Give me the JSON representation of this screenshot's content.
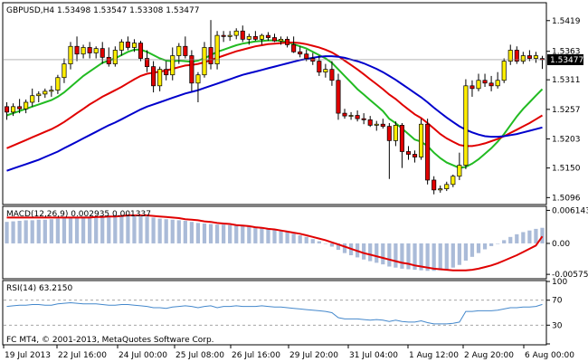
{
  "header": {
    "main_label": "GBPUSD,H4  1.53498 1.53547 1.53308 1.53477",
    "macd_label": "MACD(12,26,9) 0.002935 0.001337",
    "rsi_label": "RSI(14) 63.2150",
    "footer_label": "FC MT4, © 2001-2013, MetaQuotes Software Corp."
  },
  "colors": {
    "bull": "#ffee00",
    "bear": "#e00000",
    "ma_fast": "#22bb22",
    "ma_mid": "#e00000",
    "ma_slow": "#0000cc",
    "macd_hist": "#aabbd8",
    "macd_signal": "#e00000",
    "rsi_line": "#4488cc",
    "price_tag_bg": "#000000"
  },
  "chart_data": [
    {
      "type": "candlestick",
      "title": "GBPUSD,H4",
      "ylim": [
        1.5085,
        1.545
      ],
      "yticks": [
        1.5419,
        1.5363,
        1.5311,
        1.5257,
        1.5203,
        1.515,
        1.5096
      ],
      "current_price": 1.53477,
      "x_labels": [
        "19 Jul 2013",
        "22 Jul 16:00",
        "24 Jul 00:00",
        "25 Jul 08:00",
        "26 Jul 16:00",
        "29 Jul 20:00",
        "31 Jul 04:00",
        "1 Aug 12:00",
        "2 Aug 20:00",
        "6 Aug 00:00"
      ],
      "candles": [
        [
          1.5262,
          1.527,
          1.5238,
          1.5252
        ],
        [
          1.5252,
          1.5268,
          1.5245,
          1.5262
        ],
        [
          1.5262,
          1.5276,
          1.525,
          1.5258
        ],
        [
          1.5258,
          1.5275,
          1.525,
          1.527
        ],
        [
          1.527,
          1.5295,
          1.5262,
          1.5282
        ],
        [
          1.5282,
          1.529,
          1.527,
          1.5285
        ],
        [
          1.5285,
          1.5295,
          1.5278,
          1.529
        ],
        [
          1.529,
          1.53,
          1.528,
          1.5292
        ],
        [
          1.5292,
          1.532,
          1.5285,
          1.5315
        ],
        [
          1.5315,
          1.535,
          1.5305,
          1.534
        ],
        [
          1.534,
          1.538,
          1.533,
          1.5372
        ],
        [
          1.5372,
          1.539,
          1.5345,
          1.5358
        ],
        [
          1.5358,
          1.5375,
          1.535,
          1.537
        ],
        [
          1.537,
          1.538,
          1.535,
          1.536
        ],
        [
          1.536,
          1.5372,
          1.535,
          1.5368
        ],
        [
          1.5368,
          1.538,
          1.534,
          1.5352
        ],
        [
          1.5352,
          1.537,
          1.5335,
          1.534
        ],
        [
          1.534,
          1.5372,
          1.5335,
          1.5365
        ],
        [
          1.5365,
          1.5385,
          1.5355,
          1.538
        ],
        [
          1.538,
          1.539,
          1.5365,
          1.537
        ],
        [
          1.537,
          1.5385,
          1.5362,
          1.5378
        ],
        [
          1.5378,
          1.5382,
          1.5345,
          1.535
        ],
        [
          1.535,
          1.5365,
          1.5325,
          1.5335
        ],
        [
          1.5335,
          1.5345,
          1.5288,
          1.53
        ],
        [
          1.53,
          1.5335,
          1.529,
          1.533
        ],
        [
          1.533,
          1.5345,
          1.531,
          1.532
        ],
        [
          1.532,
          1.537,
          1.531,
          1.5355
        ],
        [
          1.5355,
          1.5378,
          1.534,
          1.5372
        ],
        [
          1.5372,
          1.539,
          1.535,
          1.5355
        ],
        [
          1.5355,
          1.5365,
          1.529,
          1.5305
        ],
        [
          1.5305,
          1.5325,
          1.527,
          1.532
        ],
        [
          1.532,
          1.538,
          1.5315,
          1.537
        ],
        [
          1.537,
          1.542,
          1.533,
          1.534
        ],
        [
          1.534,
          1.54,
          1.533,
          1.5392
        ],
        [
          1.5392,
          1.54,
          1.538,
          1.539
        ],
        [
          1.539,
          1.54,
          1.5382,
          1.5392
        ],
        [
          1.5392,
          1.5405,
          1.5385,
          1.54
        ],
        [
          1.54,
          1.541,
          1.538,
          1.5385
        ],
        [
          1.5385,
          1.5395,
          1.5375,
          1.539
        ],
        [
          1.539,
          1.54,
          1.5382,
          1.5385
        ],
        [
          1.5385,
          1.5395,
          1.5375,
          1.5392
        ],
        [
          1.5392,
          1.5398,
          1.5382,
          1.5388
        ],
        [
          1.5388,
          1.5395,
          1.538,
          1.5382
        ],
        [
          1.5382,
          1.539,
          1.5375,
          1.5385
        ],
        [
          1.5385,
          1.539,
          1.537,
          1.5375
        ],
        [
          1.5375,
          1.539,
          1.536,
          1.5362
        ],
        [
          1.5362,
          1.5372,
          1.5352,
          1.5358
        ],
        [
          1.5358,
          1.5366,
          1.5345,
          1.535
        ],
        [
          1.535,
          1.536,
          1.5338,
          1.5345
        ],
        [
          1.5345,
          1.5355,
          1.5318,
          1.5325
        ],
        [
          1.5325,
          1.534,
          1.5315,
          1.533
        ],
        [
          1.533,
          1.5345,
          1.53,
          1.531
        ],
        [
          1.531,
          1.5322,
          1.5238,
          1.525
        ],
        [
          1.525,
          1.5258,
          1.524,
          1.5245
        ],
        [
          1.5245,
          1.5252,
          1.5238,
          1.5246
        ],
        [
          1.5246,
          1.5255,
          1.5235,
          1.524
        ],
        [
          1.524,
          1.525,
          1.523,
          1.5238
        ],
        [
          1.5238,
          1.5245,
          1.5225,
          1.5228
        ],
        [
          1.5228,
          1.5236,
          1.5218,
          1.523
        ],
        [
          1.523,
          1.524,
          1.5222,
          1.5226
        ],
        [
          1.5226,
          1.5232,
          1.513,
          1.52
        ],
        [
          1.52,
          1.5235,
          1.519,
          1.5228
        ],
        [
          1.5228,
          1.5232,
          1.515,
          1.518
        ],
        [
          1.518,
          1.519,
          1.5165,
          1.5175
        ],
        [
          1.5175,
          1.5182,
          1.516,
          1.517
        ],
        [
          1.517,
          1.524,
          1.5165,
          1.523
        ],
        [
          1.523,
          1.524,
          1.512,
          1.5128
        ],
        [
          1.5128,
          1.5135,
          1.5102,
          1.511
        ],
        [
          1.511,
          1.5118,
          1.5105,
          1.5112
        ],
        [
          1.5112,
          1.5125,
          1.5108,
          1.512
        ],
        [
          1.512,
          1.5138,
          1.5115,
          1.5135
        ],
        [
          1.5135,
          1.5178,
          1.5128,
          1.5155
        ],
        [
          1.5155,
          1.5312,
          1.5148,
          1.53
        ],
        [
          1.53,
          1.531,
          1.528,
          1.5295
        ],
        [
          1.5295,
          1.5322,
          1.529,
          1.531
        ],
        [
          1.531,
          1.5322,
          1.5298,
          1.5305
        ],
        [
          1.5305,
          1.5318,
          1.529,
          1.53
        ],
        [
          1.53,
          1.5325,
          1.5295,
          1.531
        ],
        [
          1.531,
          1.535,
          1.5305,
          1.5345
        ],
        [
          1.5345,
          1.5375,
          1.5338,
          1.5365
        ],
        [
          1.5365,
          1.5372,
          1.534,
          1.5345
        ],
        [
          1.5345,
          1.5362,
          1.534,
          1.5355
        ],
        [
          1.5355,
          1.5365,
          1.5345,
          1.535
        ],
        [
          1.535,
          1.5362,
          1.5342,
          1.5355
        ],
        [
          1.53498,
          1.53547,
          1.53308,
          1.53477
        ]
      ],
      "series": [
        {
          "name": "",
          "color_key": "ma_fast",
          "values": [
            1.5246,
            1.525,
            1.5254,
            1.5258,
            1.5262,
            1.5266,
            1.527,
            1.5274,
            1.528,
            1.5288,
            1.5298,
            1.5308,
            1.5318,
            1.5326,
            1.5334,
            1.5342,
            1.5346,
            1.535,
            1.5356,
            1.5362,
            1.5366,
            1.5366,
            1.5362,
            1.5356,
            1.535,
            1.5346,
            1.5345,
            1.5346,
            1.5345,
            1.5344,
            1.5346,
            1.535,
            1.5356,
            1.5362,
            1.5366,
            1.537,
            1.5374,
            1.5377,
            1.5379,
            1.5381,
            1.5382,
            1.5383,
            1.5383,
            1.5382,
            1.538,
            1.5376,
            1.5372,
            1.5368,
            1.5362,
            1.5356,
            1.535,
            1.5342,
            1.533,
            1.5318,
            1.5306,
            1.5294,
            1.5284,
            1.5274,
            1.5264,
            1.5254,
            1.524,
            1.5232,
            1.5222,
            1.5212,
            1.5202,
            1.5198,
            1.519,
            1.5178,
            1.5168,
            1.516,
            1.5155,
            1.515,
            1.5152,
            1.5158,
            1.5166,
            1.5176,
            1.5186,
            1.5198,
            1.5212,
            1.5228,
            1.5244,
            1.5258,
            1.527,
            1.5282,
            1.5294
          ]
        },
        {
          "name": "",
          "color_key": "ma_mid",
          "values": [
            1.5186,
            1.5191,
            1.5196,
            1.5201,
            1.5206,
            1.5211,
            1.5216,
            1.5221,
            1.5227,
            1.5234,
            1.5242,
            1.525,
            1.5258,
            1.5266,
            1.5273,
            1.528,
            1.5286,
            1.5292,
            1.5298,
            1.5305,
            1.5312,
            1.5318,
            1.5322,
            1.5324,
            1.5326,
            1.5328,
            1.5331,
            1.5334,
            1.5337,
            1.5338,
            1.534,
            1.5343,
            1.5347,
            1.5351,
            1.5355,
            1.5359,
            1.5363,
            1.5366,
            1.5369,
            1.5372,
            1.5374,
            1.5376,
            1.5377,
            1.5378,
            1.5379,
            1.5379,
            1.5378,
            1.5376,
            1.5373,
            1.537,
            1.5366,
            1.5361,
            1.5354,
            1.5346,
            1.5338,
            1.533,
            1.5321,
            1.5312,
            1.5303,
            1.5294,
            1.5284,
            1.5276,
            1.5266,
            1.5257,
            1.5248,
            1.5241,
            1.5232,
            1.5222,
            1.5212,
            1.5204,
            1.5198,
            1.5192,
            1.519,
            1.519,
            1.5192,
            1.5195,
            1.5199,
            1.5203,
            1.5208,
            1.5214,
            1.522,
            1.5226,
            1.5232,
            1.5239,
            1.5246
          ]
        },
        {
          "name": "",
          "color_key": "ma_slow",
          "values": [
            1.5145,
            1.5149,
            1.5153,
            1.5157,
            1.5161,
            1.5165,
            1.517,
            1.5175,
            1.518,
            1.5186,
            1.5192,
            1.5198,
            1.5204,
            1.521,
            1.5216,
            1.5222,
            1.5228,
            1.5233,
            1.5239,
            1.5245,
            1.5251,
            1.5257,
            1.5262,
            1.5266,
            1.527,
            1.5274,
            1.5278,
            1.5282,
            1.5286,
            1.5289,
            1.5292,
            1.5296,
            1.53,
            1.5304,
            1.5308,
            1.5312,
            1.5316,
            1.532,
            1.5323,
            1.5326,
            1.5329,
            1.5332,
            1.5335,
            1.5338,
            1.5341,
            1.5344,
            1.5347,
            1.5349,
            1.5351,
            1.5353,
            1.5354,
            1.5354,
            1.5353,
            1.5351,
            1.5348,
            1.5345,
            1.5341,
            1.5336,
            1.5331,
            1.5325,
            1.5318,
            1.5311,
            1.5303,
            1.5295,
            1.5287,
            1.5279,
            1.527,
            1.526,
            1.5251,
            1.5242,
            1.5234,
            1.5226,
            1.522,
            1.5215,
            1.5211,
            1.5208,
            1.5207,
            1.5207,
            1.5208,
            1.521,
            1.5212,
            1.5215,
            1.5218,
            1.5221,
            1.5224
          ]
        }
      ]
    },
    {
      "type": "bar+line",
      "title": "MACD(12,26,9) 0.002935 0.001337",
      "ylim": [
        -0.0064,
        0.00672
      ],
      "yticks": [
        0.006143,
        0.0,
        -0.005751
      ],
      "series": [
        {
          "name": "",
          "color_key": "macd_hist",
          "values": [
            0.004,
            0.0041,
            0.0042,
            0.0043,
            0.0043,
            0.0044,
            0.0044,
            0.0045,
            0.0046,
            0.0047,
            0.0048,
            0.0049,
            0.005,
            0.005,
            0.005,
            0.0051,
            0.0052,
            0.0053,
            0.0053,
            0.0053,
            0.0052,
            0.0051,
            0.005,
            0.0048,
            0.0046,
            0.0045,
            0.0044,
            0.0043,
            0.0042,
            0.004,
            0.0038,
            0.0037,
            0.0036,
            0.0035,
            0.0035,
            0.0034,
            0.0033,
            0.0032,
            0.0031,
            0.003,
            0.0029,
            0.0027,
            0.0025,
            0.0023,
            0.0021,
            0.0018,
            0.0015,
            0.0012,
            0.0008,
            0.0004,
            0.0,
            -0.0006,
            -0.0012,
            -0.0018,
            -0.0022,
            -0.0026,
            -0.003,
            -0.0033,
            -0.0036,
            -0.0039,
            -0.0043,
            -0.0045,
            -0.0047,
            -0.0048,
            -0.0049,
            -0.005,
            -0.0051,
            -0.0051,
            -0.005,
            -0.0048,
            -0.0045,
            -0.004,
            -0.0032,
            -0.0025,
            -0.0018,
            -0.0011,
            -0.0005,
            0.0,
            0.0006,
            0.0012,
            0.0017,
            0.0021,
            0.0024,
            0.0027,
            0.0029
          ]
        },
        {
          "name": "",
          "color_key": "macd_signal",
          "values": [
            0.0048,
            0.0048,
            0.0048,
            0.0048,
            0.0048,
            0.0048,
            0.0048,
            0.0048,
            0.0048,
            0.0048,
            0.0048,
            0.0048,
            0.0048,
            0.0048,
            0.0049,
            0.0049,
            0.005,
            0.005,
            0.0051,
            0.0052,
            0.0052,
            0.0052,
            0.0052,
            0.0051,
            0.005,
            0.0049,
            0.0048,
            0.0047,
            0.0045,
            0.0044,
            0.0043,
            0.0041,
            0.004,
            0.0038,
            0.0037,
            0.0036,
            0.0034,
            0.0033,
            0.0032,
            0.003,
            0.0029,
            0.0027,
            0.0026,
            0.0024,
            0.0022,
            0.002,
            0.0018,
            0.0015,
            0.0012,
            0.0009,
            0.0006,
            0.0002,
            -0.0002,
            -0.0006,
            -0.001,
            -0.0014,
            -0.0018,
            -0.0021,
            -0.0024,
            -0.0027,
            -0.003,
            -0.0033,
            -0.0036,
            -0.0038,
            -0.0041,
            -0.0043,
            -0.0045,
            -0.0047,
            -0.0048,
            -0.0049,
            -0.005,
            -0.005,
            -0.005,
            -0.0049,
            -0.0047,
            -0.0044,
            -0.0041,
            -0.0037,
            -0.0032,
            -0.0027,
            -0.0022,
            -0.0016,
            -0.001,
            -0.0004,
            0.0013
          ]
        }
      ]
    },
    {
      "type": "line",
      "title": "RSI(14) 63.2150",
      "ylim": [
        0,
        100
      ],
      "yticks": [
        100,
        70,
        30,
        0
      ],
      "series": [
        {
          "name": "",
          "color_key": "rsi_line",
          "values": [
            60,
            61,
            62,
            62,
            63,
            63,
            62,
            62,
            64,
            65,
            66,
            65,
            64,
            64,
            64,
            63,
            62,
            62,
            63,
            63,
            62,
            61,
            60,
            58,
            58,
            57,
            59,
            60,
            61,
            60,
            58,
            60,
            61,
            58,
            60,
            60,
            61,
            60,
            60,
            60,
            61,
            60,
            59,
            59,
            58,
            57,
            56,
            55,
            54,
            53,
            52,
            50,
            42,
            40,
            40,
            40,
            39,
            38,
            39,
            38,
            36,
            38,
            36,
            35,
            35,
            37,
            34,
            32,
            32,
            32,
            33,
            35,
            52,
            52,
            53,
            53,
            53,
            54,
            56,
            58,
            58,
            59,
            59,
            60,
            63.2
          ]
        }
      ]
    }
  ]
}
